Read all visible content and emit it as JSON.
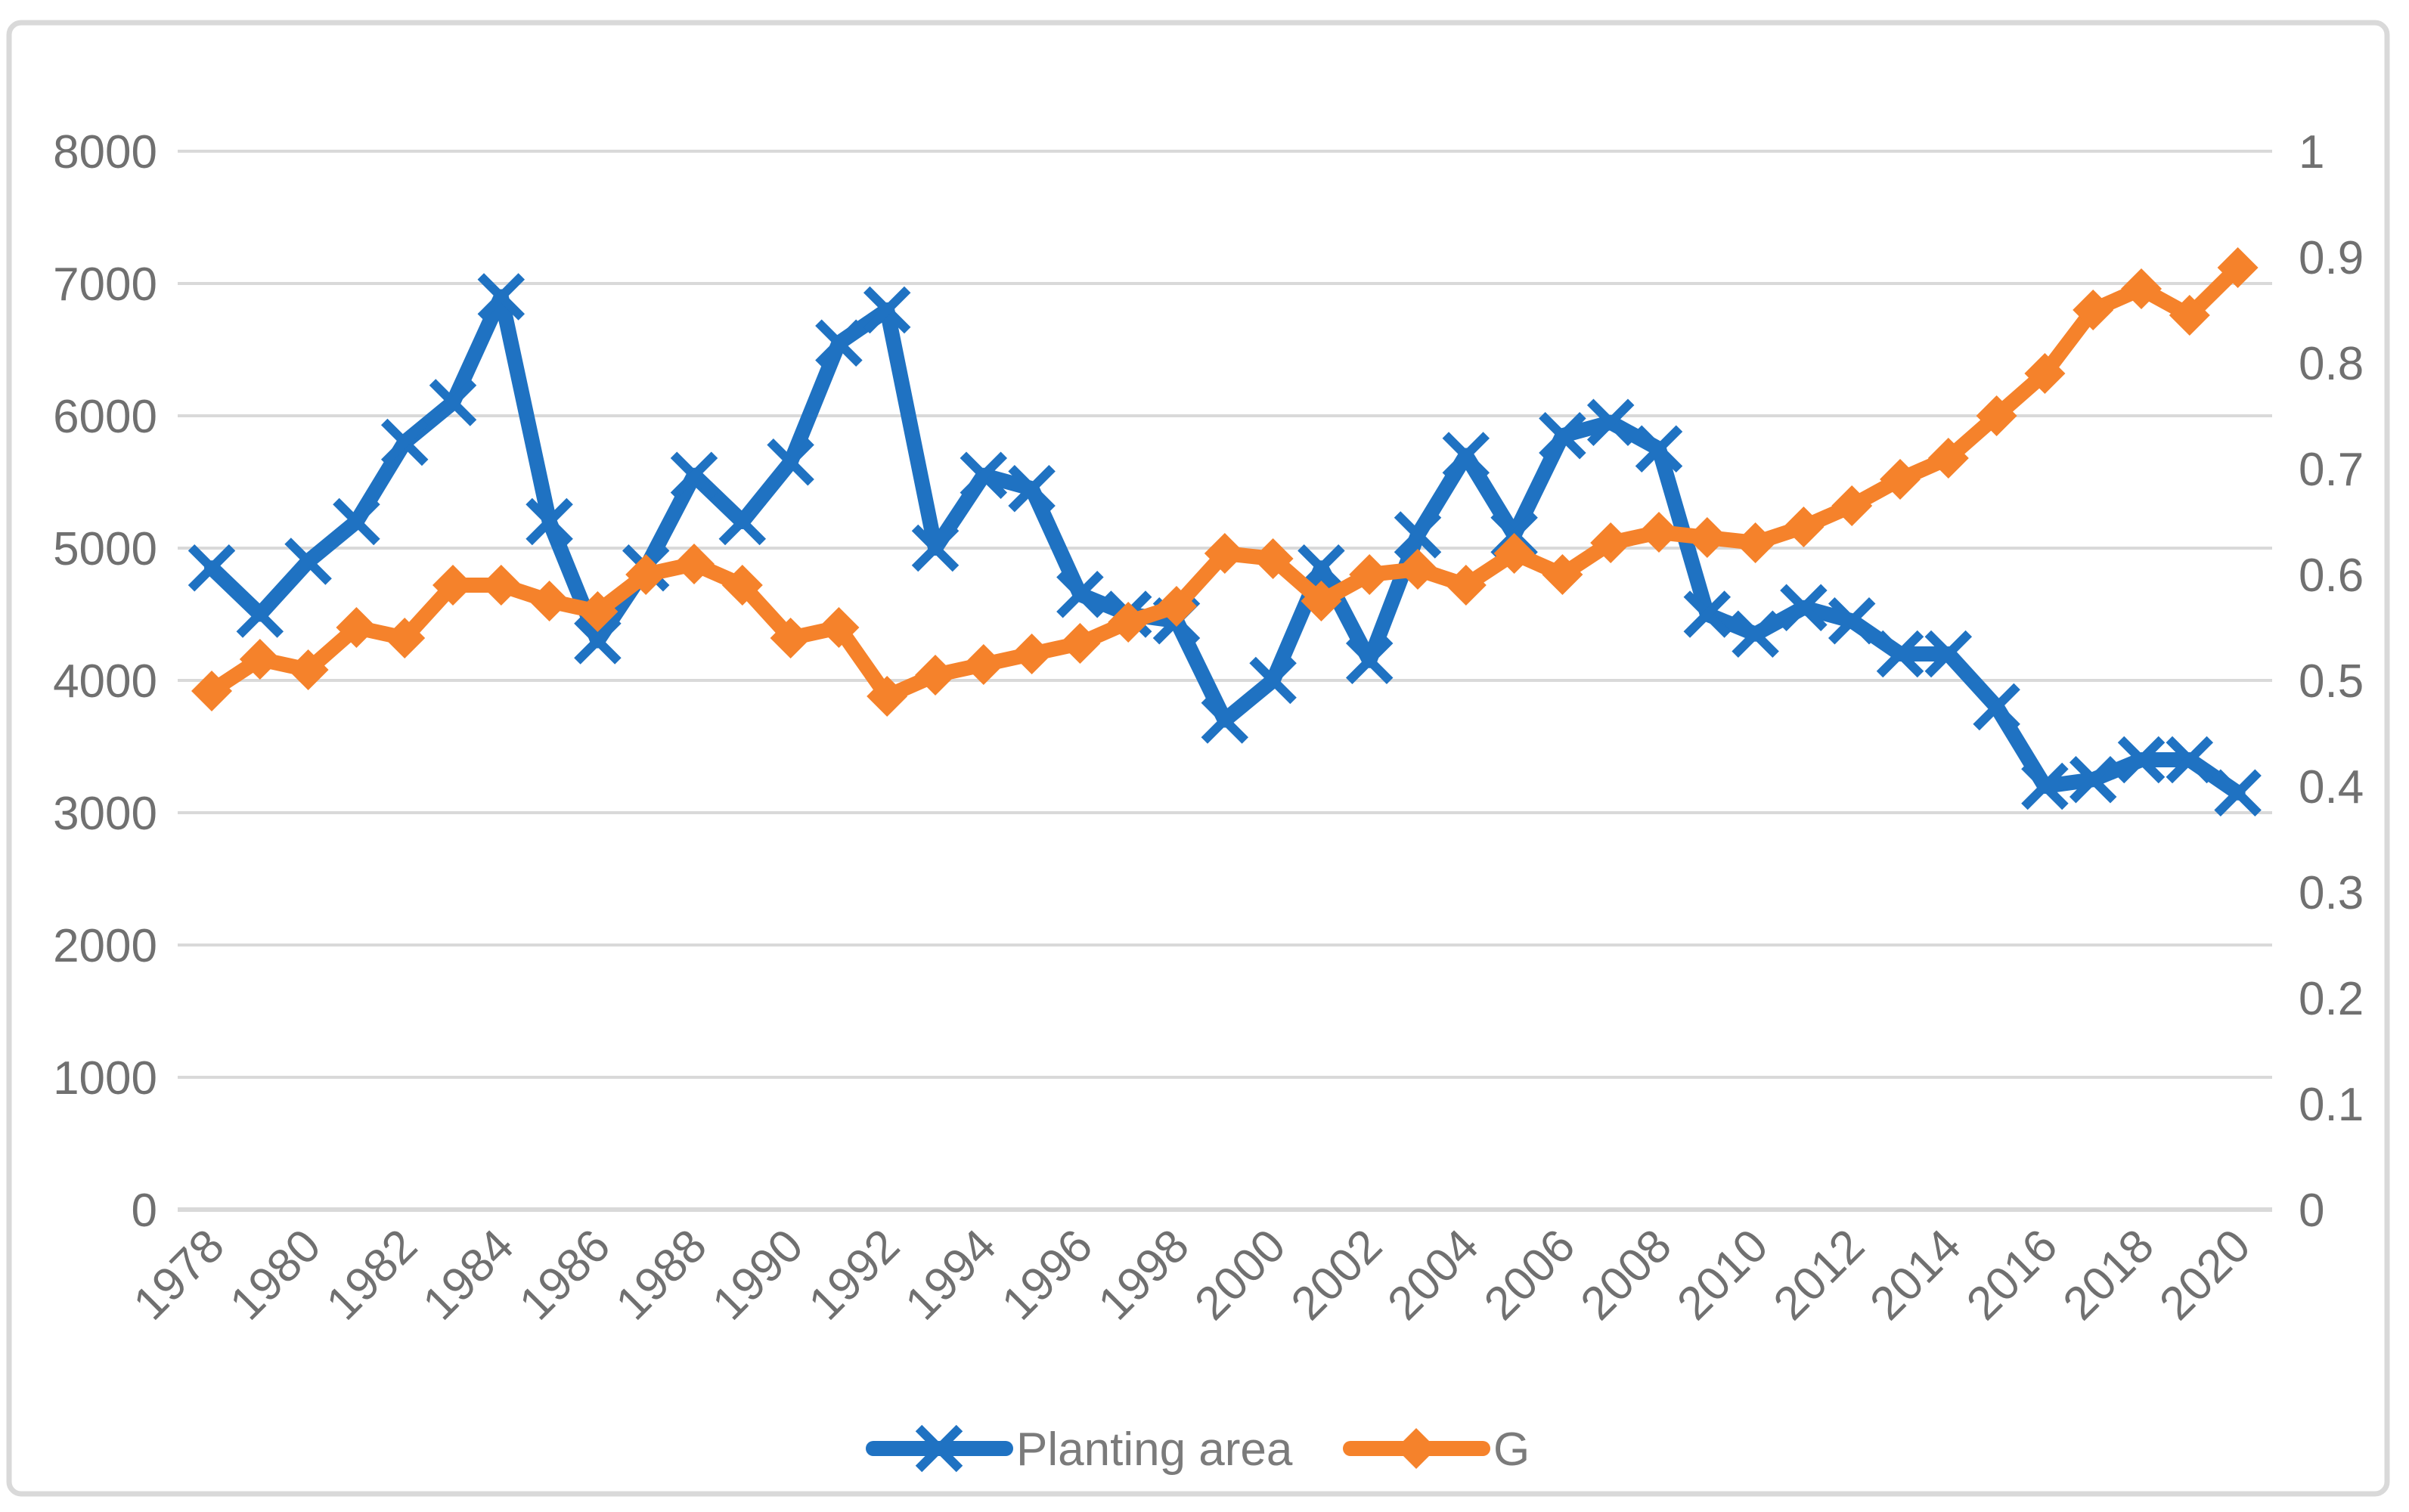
{
  "chart": {
    "frame_color": "#D9D9D9",
    "grid_color": "#D9D9D9",
    "axis_line_color": "#D9D9D9",
    "tick_label_color": "#707070",
    "legend_text_color": "#7B7B7B",
    "background": "#FFFFFF"
  },
  "legend": {
    "planting_area_label": "Planting area",
    "g_label": "G"
  },
  "chart_data": {
    "type": "line",
    "title": "",
    "grid": true,
    "legend_position": "bottom",
    "x": [
      1978,
      1979,
      1980,
      1981,
      1982,
      1983,
      1984,
      1985,
      1986,
      1987,
      1988,
      1989,
      1990,
      1991,
      1992,
      1993,
      1994,
      1995,
      1996,
      1997,
      1998,
      1999,
      2000,
      2001,
      2002,
      2003,
      2004,
      2005,
      2006,
      2007,
      2008,
      2009,
      2010,
      2011,
      2012,
      2013,
      2014,
      2015,
      2016,
      2017,
      2018,
      2019,
      2020
    ],
    "x_tick_labels": [
      "1978",
      "1980",
      "1982",
      "1984",
      "1986",
      "1988",
      "1990",
      "1992",
      "1994",
      "1996",
      "1998",
      "2000",
      "2002",
      "2004",
      "2006",
      "2008",
      "2010",
      "2012",
      "2014",
      "2016",
      "2018",
      "2020"
    ],
    "left_axis": {
      "min": 0,
      "max": 8000,
      "step": 1000,
      "tick_labels": [
        "0",
        "1000",
        "2000",
        "3000",
        "4000",
        "5000",
        "6000",
        "7000",
        "8000"
      ]
    },
    "right_axis": {
      "min": 0,
      "max": 1,
      "step": 0.1,
      "tick_labels": [
        "0",
        "0.1",
        "0.2",
        "0.3",
        "0.4",
        "0.5",
        "0.6",
        "0.7",
        "0.8",
        "0.9",
        "1"
      ]
    },
    "series": [
      {
        "name": "Planting area",
        "axis": "left",
        "color": "#1F72C2",
        "marker": "x",
        "values": [
          4850,
          4500,
          4900,
          5200,
          5800,
          6100,
          6900,
          5200,
          4300,
          4850,
          5550,
          5200,
          5650,
          6550,
          6800,
          5000,
          5550,
          5450,
          4650,
          4500,
          4450,
          3700,
          4000,
          4850,
          4150,
          5100,
          5700,
          5100,
          5850,
          5950,
          5750,
          4500,
          4350,
          4550,
          4450,
          4200,
          4200,
          3800,
          3200,
          3250,
          3400,
          3400,
          3150
        ]
      },
      {
        "name": "G",
        "axis": "right",
        "color": "#F5822B",
        "marker": "diamond",
        "values": [
          0.49,
          0.52,
          0.51,
          0.55,
          0.54,
          0.59,
          0.59,
          0.575,
          0.565,
          0.6,
          0.61,
          0.59,
          0.54,
          0.55,
          0.485,
          0.505,
          0.515,
          0.525,
          0.535,
          0.555,
          0.57,
          0.62,
          0.615,
          0.575,
          0.6,
          0.605,
          0.59,
          0.62,
          0.6,
          0.63,
          0.64,
          0.635,
          0.63,
          0.645,
          0.665,
          0.69,
          0.71,
          0.75,
          0.79,
          0.85,
          0.87,
          0.845,
          0.89
        ]
      }
    ]
  }
}
